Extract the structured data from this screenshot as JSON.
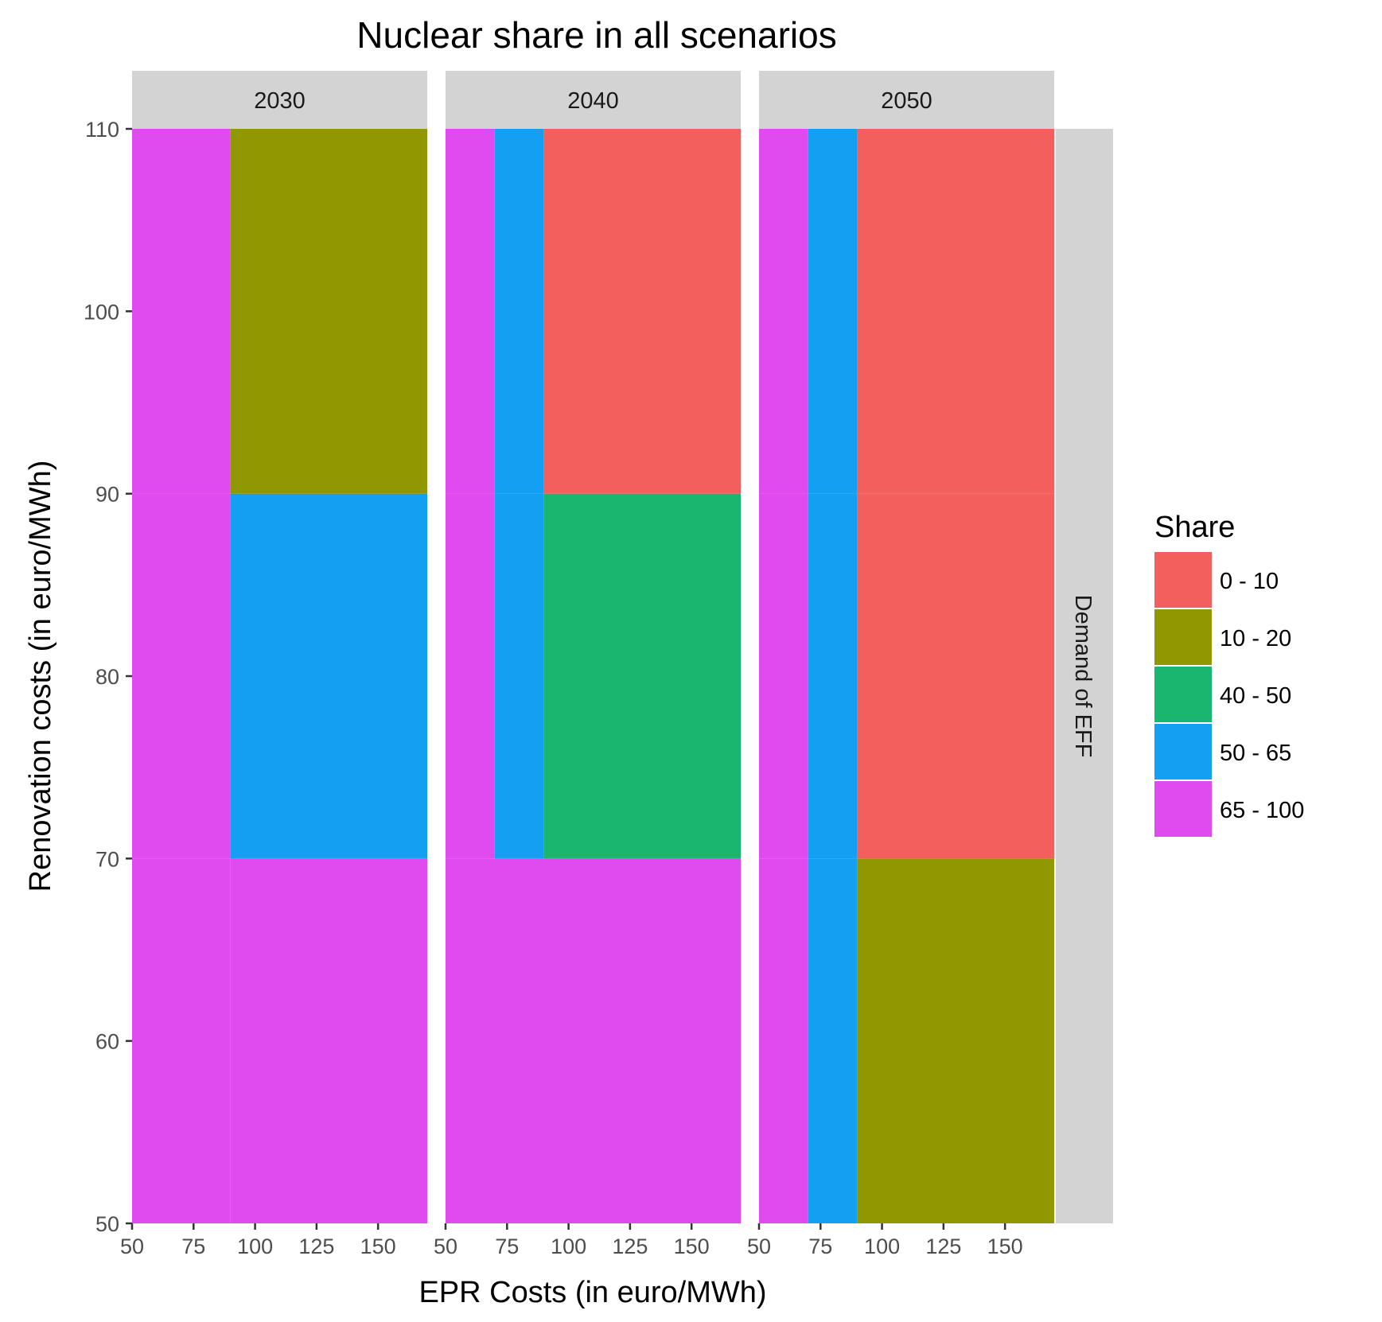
{
  "chart_data": {
    "type": "heatmap",
    "title": "Nuclear share in all scenarios",
    "xlabel": "EPR Costs (in euro/MWh)",
    "ylabel": "Renovation costs (in euro/MWh)",
    "row_strip": "Demand of EFF",
    "x_ticks": [
      50,
      75,
      100,
      125,
      150
    ],
    "y_ticks": [
      50,
      60,
      70,
      80,
      90,
      100,
      110
    ],
    "xlim": [
      50,
      170
    ],
    "ylim": [
      50,
      110
    ],
    "grid": false,
    "legend": {
      "title": "Share",
      "position": "right",
      "entries": [
        {
          "label": "0 - 10",
          "color": "#F25F5C"
        },
        {
          "label": "10 - 20",
          "color": "#919700"
        },
        {
          "label": "40 - 50",
          "color": "#1AB56E"
        },
        {
          "label": "50 - 65",
          "color": "#14A0F2"
        },
        {
          "label": "65 - 100",
          "color": "#E04BEF"
        }
      ]
    },
    "panels": [
      {
        "facet": "2030",
        "tiles": [
          {
            "x0": 50,
            "x1": 90,
            "y0": 50,
            "y1": 70,
            "share": "65 - 100"
          },
          {
            "x0": 90,
            "x1": 170,
            "y0": 50,
            "y1": 70,
            "share": "65 - 100"
          },
          {
            "x0": 50,
            "x1": 90,
            "y0": 70,
            "y1": 90,
            "share": "65 - 100"
          },
          {
            "x0": 90,
            "x1": 170,
            "y0": 70,
            "y1": 90,
            "share": "50 - 65"
          },
          {
            "x0": 50,
            "x1": 90,
            "y0": 90,
            "y1": 110,
            "share": "65 - 100"
          },
          {
            "x0": 90,
            "x1": 170,
            "y0": 90,
            "y1": 110,
            "share": "10 - 20"
          }
        ]
      },
      {
        "facet": "2040",
        "tiles": [
          {
            "x0": 50,
            "x1": 170,
            "y0": 50,
            "y1": 70,
            "share": "65 - 100"
          },
          {
            "x0": 50,
            "x1": 70,
            "y0": 70,
            "y1": 90,
            "share": "65 - 100"
          },
          {
            "x0": 70,
            "x1": 90,
            "y0": 70,
            "y1": 90,
            "share": "50 - 65"
          },
          {
            "x0": 90,
            "x1": 170,
            "y0": 70,
            "y1": 90,
            "share": "40 - 50"
          },
          {
            "x0": 50,
            "x1": 70,
            "y0": 90,
            "y1": 110,
            "share": "65 - 100"
          },
          {
            "x0": 70,
            "x1": 90,
            "y0": 90,
            "y1": 110,
            "share": "50 - 65"
          },
          {
            "x0": 90,
            "x1": 170,
            "y0": 90,
            "y1": 110,
            "share": "0 - 10"
          }
        ]
      },
      {
        "facet": "2050",
        "tiles": [
          {
            "x0": 50,
            "x1": 70,
            "y0": 50,
            "y1": 70,
            "share": "65 - 100"
          },
          {
            "x0": 70,
            "x1": 90,
            "y0": 50,
            "y1": 70,
            "share": "50 - 65"
          },
          {
            "x0": 90,
            "x1": 170,
            "y0": 50,
            "y1": 70,
            "share": "10 - 20"
          },
          {
            "x0": 50,
            "x1": 70,
            "y0": 70,
            "y1": 90,
            "share": "65 - 100"
          },
          {
            "x0": 70,
            "x1": 90,
            "y0": 70,
            "y1": 90,
            "share": "50 - 65"
          },
          {
            "x0": 90,
            "x1": 170,
            "y0": 70,
            "y1": 90,
            "share": "0 - 10"
          },
          {
            "x0": 50,
            "x1": 70,
            "y0": 90,
            "y1": 110,
            "share": "65 - 100"
          },
          {
            "x0": 70,
            "x1": 90,
            "y0": 90,
            "y1": 110,
            "share": "50 - 65"
          },
          {
            "x0": 90,
            "x1": 170,
            "y0": 90,
            "y1": 110,
            "share": "0 - 10"
          }
        ]
      }
    ]
  }
}
